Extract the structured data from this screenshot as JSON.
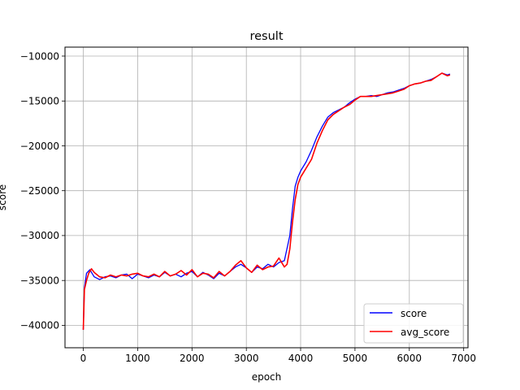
{
  "chart_data": {
    "type": "line",
    "title": "result",
    "xlabel": "epoch",
    "ylabel": "score",
    "xlim": [
      -337,
      7080
    ],
    "ylim": [
      -42500,
      -9000
    ],
    "grid": true,
    "x_ticks": [
      0,
      1000,
      2000,
      3000,
      4000,
      5000,
      6000,
      7000
    ],
    "x_tick_labels": [
      "0",
      "1000",
      "2000",
      "3000",
      "4000",
      "5000",
      "6000",
      "7000"
    ],
    "y_ticks": [
      -40000,
      -35000,
      -30000,
      -25000,
      -20000,
      -15000,
      -10000
    ],
    "y_tick_labels": [
      "−40000",
      "−35000",
      "−30000",
      "−25000",
      "−20000",
      "−15000",
      "−10000"
    ],
    "legend_position": "bottom-right",
    "series": [
      {
        "name": "score",
        "color": "#0000ff",
        "x": [
          0,
          20,
          60,
          120,
          200,
          300,
          400,
          500,
          600,
          700,
          800,
          900,
          1000,
          1100,
          1200,
          1300,
          1400,
          1500,
          1600,
          1700,
          1800,
          1900,
          2000,
          2100,
          2200,
          2300,
          2400,
          2500,
          2600,
          2700,
          2800,
          2900,
          3000,
          3100,
          3200,
          3300,
          3400,
          3500,
          3600,
          3700,
          3800,
          3850,
          3900,
          3950,
          4000,
          4100,
          4200,
          4300,
          4400,
          4500,
          4600,
          4700,
          4800,
          4900,
          5000,
          5100,
          5200,
          5300,
          5400,
          5500,
          5600,
          5700,
          5800,
          5900,
          6000,
          6100,
          6200,
          6300,
          6400,
          6500,
          6600,
          6700,
          6750
        ],
        "values": [
          -40500,
          -35800,
          -34200,
          -33800,
          -34600,
          -34900,
          -34600,
          -34500,
          -34700,
          -34400,
          -34300,
          -34800,
          -34300,
          -34500,
          -34700,
          -34400,
          -34600,
          -34100,
          -34500,
          -34300,
          -34600,
          -34200,
          -34000,
          -34600,
          -34100,
          -34400,
          -34800,
          -34200,
          -34500,
          -34000,
          -33500,
          -33200,
          -33600,
          -34100,
          -33500,
          -33700,
          -33200,
          -33500,
          -33000,
          -32800,
          -30000,
          -27000,
          -24500,
          -23500,
          -22800,
          -21800,
          -20500,
          -19000,
          -17800,
          -16800,
          -16300,
          -16000,
          -15700,
          -15200,
          -14800,
          -14500,
          -14500,
          -14400,
          -14500,
          -14300,
          -14100,
          -14000,
          -13800,
          -13600,
          -13300,
          -13100,
          -13000,
          -12800,
          -12600,
          -12300,
          -11900,
          -12100,
          -12000
        ]
      },
      {
        "name": "avg_score",
        "color": "#ff0000",
        "x": [
          0,
          20,
          60,
          100,
          150,
          200,
          300,
          400,
          500,
          600,
          700,
          800,
          900,
          1000,
          1100,
          1200,
          1300,
          1400,
          1500,
          1600,
          1700,
          1800,
          1900,
          2000,
          2100,
          2200,
          2300,
          2400,
          2500,
          2600,
          2700,
          2800,
          2900,
          3000,
          3100,
          3200,
          3300,
          3400,
          3500,
          3600,
          3700,
          3750,
          3800,
          3850,
          3900,
          3950,
          4000,
          4100,
          4200,
          4300,
          4400,
          4500,
          4600,
          4700,
          4800,
          4900,
          5000,
          5100,
          5200,
          5300,
          5400,
          5500,
          5600,
          5700,
          5800,
          5900,
          6000,
          6100,
          6200,
          6300,
          6400,
          6500,
          6600,
          6700,
          6750
        ],
        "values": [
          -40500,
          -36000,
          -35000,
          -34200,
          -33700,
          -34100,
          -34600,
          -34700,
          -34400,
          -34600,
          -34400,
          -34500,
          -34300,
          -34200,
          -34500,
          -34600,
          -34300,
          -34600,
          -34000,
          -34500,
          -34300,
          -33900,
          -34400,
          -33800,
          -34600,
          -34200,
          -34300,
          -34700,
          -34000,
          -34500,
          -34000,
          -33300,
          -32800,
          -33600,
          -34100,
          -33300,
          -33800,
          -33500,
          -33400,
          -32500,
          -33500,
          -33200,
          -31500,
          -28500,
          -26000,
          -24300,
          -23500,
          -22500,
          -21500,
          -19700,
          -18300,
          -17100,
          -16500,
          -16100,
          -15700,
          -15400,
          -14900,
          -14500,
          -14500,
          -14500,
          -14400,
          -14300,
          -14200,
          -14100,
          -13900,
          -13700,
          -13300,
          -13100,
          -13000,
          -12800,
          -12700,
          -12300,
          -11900,
          -12200,
          -12100
        ]
      }
    ]
  }
}
